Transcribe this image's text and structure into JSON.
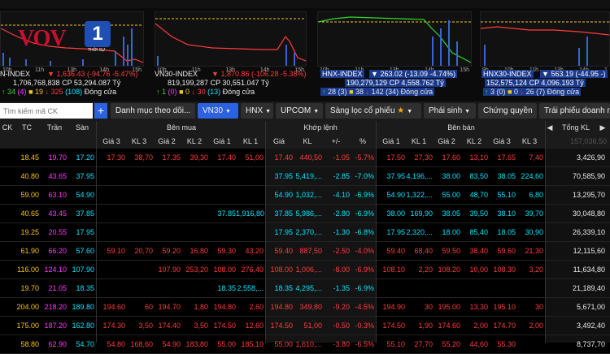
{
  "indices": [
    {
      "name": "N-INDEX",
      "value": "1,636.43",
      "change": "-94.76 -5.47%",
      "volume": "1,706,768,838",
      "cp": "CP 53,294.087 Tỷ",
      "up": "34",
      "up_c": "(4)",
      "ref": "19",
      "down": "325",
      "down_c": "(108)",
      "status": "Đóng cửa",
      "ticks": [
        "10h",
        "11h",
        "13h",
        "14h",
        "15h"
      ]
    },
    {
      "name": "VN30-INDEX",
      "value": "1,870.86",
      "change": "-106.28 -5.38%",
      "volume": "819,199,287",
      "cp": "CP 30,551.047 Tỷ",
      "up": "1",
      "up_c": "(0)",
      "ref": "0",
      "down": "30",
      "down_c": "(13)",
      "status": "Đóng cửa",
      "ticks": [
        "10h",
        "11h",
        "13h",
        "14h",
        "15h"
      ]
    },
    {
      "name": "HNX-INDEX",
      "value": "263.02",
      "change": "-13.09 -4.74%",
      "volume": "190,279,129",
      "cp": "CP 4,558.762 Tỷ",
      "up": "28",
      "up_c": "(3)",
      "ref": "38",
      "down": "142",
      "down_c": "(34)",
      "status": "Đóng cửa",
      "ticks": [
        "10h",
        "11h",
        "13h",
        "14h",
        "15h"
      ]
    },
    {
      "name": "HNX30-INDEX",
      "value": "563.19",
      "change": "-44.95 -",
      "volume": "152,575,124",
      "cp": "CP 4,096.193 Tỷ",
      "up": "3",
      "up_c": "(0)",
      "ref": "0",
      "down": "26",
      "down_c": "(7)",
      "status": "Đóng cửa",
      "ticks": [
        "9h",
        "10h",
        "11h",
        "13h",
        "14h",
        "1"
      ]
    }
  ],
  "logo": {
    "text": "VOV",
    "channel": "1",
    "sub": "THỜI SỰ"
  },
  "toolbar": {
    "search_placeholder": "Tìm kiếm mã CK",
    "plus": "+",
    "buttons": [
      "Danh mục theo dõi...",
      "VN30",
      "HNX",
      "UPCOM",
      "Sàng lọc cổ phiếu",
      "Phái sinh",
      "Chứng quyền",
      "Trái phiếu doanh n"
    ]
  },
  "headers": {
    "top": {
      "ck": "CK",
      "tc": "TC",
      "tran": "Trần",
      "san": "Sàn",
      "ben_mua": "Bên mua",
      "khop_lenh": "Khớp lệnh",
      "ben_ban": "Bên bán",
      "tong_kl": "Tổng KL"
    },
    "sub": [
      "Giá 3",
      "KL 3",
      "Giá 2",
      "KL 2",
      "Giá 1",
      "KL 1",
      "Giá",
      "KL",
      "+/-",
      "%",
      "Giá 1",
      "KL 1",
      "Giá 2",
      "KL 2",
      "Giá 3",
      "KL 3"
    ],
    "tong_kl_faded": "157,036,50"
  },
  "rows": [
    {
      "ck": "",
      "tc": "18.45",
      "tran": "19.70",
      "san": "17.20",
      "b3": "17.30",
      "k3": "38,70",
      "b2": "17.35",
      "k2": "39,30",
      "b1": "17.40",
      "k1": "51,00",
      "gia": "17.40",
      "kl": "440,50",
      "ch": "-1.05",
      "pct": "-5.7%",
      "s1": "17.50",
      "sk1": "27,30",
      "s2": "17.60",
      "sk2": "13,10",
      "s3": "17.65",
      "sk3": "7,40",
      "tong": "3,426,90",
      "color": "r"
    },
    {
      "ck": "",
      "tc": "40.80",
      "tran": "43.65",
      "san": "37.95",
      "b3": "",
      "k3": "",
      "b2": "",
      "k2": "",
      "b1": "",
      "k1": "",
      "gia": "37.95",
      "kl": "5,419,...",
      "ch": "-2.85",
      "pct": "-7.0%",
      "s1": "37.95",
      "sk1": "4,196,...",
      "s2": "38.00",
      "sk2": "83,50",
      "s3": "38.05",
      "sk3": "224,60",
      "tong": "70,585,90",
      "color": "c"
    },
    {
      "ck": "",
      "tc": "59.00",
      "tran": "63.10",
      "san": "54.90",
      "b3": "",
      "k3": "",
      "b2": "",
      "k2": "",
      "b1": "",
      "k1": "",
      "gia": "54.90",
      "kl": "1,032,...",
      "ch": "-4.10",
      "pct": "-6.9%",
      "s1": "54.90",
      "sk1": "1,322,...",
      "s2": "55.00",
      "sk2": "48,70",
      "s3": "55.10",
      "sk3": "6,80",
      "tong": "13,295,70",
      "color": "c"
    },
    {
      "ck": "",
      "tc": "40.65",
      "tran": "43.45",
      "san": "37.85",
      "b3": "",
      "k3": "",
      "b2": "",
      "k2": "",
      "b1": "37.85",
      "k1": "1,916,80",
      "gia": "37.85",
      "kl": "5,986,...",
      "ch": "-2.80",
      "pct": "-6.9%",
      "s1": "38.00",
      "sk1": "169,90",
      "s2": "38.05",
      "sk2": "39,50",
      "s3": "38.10",
      "sk3": "39,70",
      "tong": "30,048,80",
      "color": "c"
    },
    {
      "ck": "",
      "tc": "19.25",
      "tran": "20.55",
      "san": "17.95",
      "b3": "",
      "k3": "",
      "b2": "",
      "k2": "",
      "b1": "",
      "k1": "",
      "gia": "17.95",
      "kl": "2,370,...",
      "ch": "-1.30",
      "pct": "-6.8%",
      "s1": "17.95",
      "sk1": "2,320,...",
      "s2": "18.00",
      "sk2": "85,40",
      "s3": "18.05",
      "sk3": "30,90",
      "tong": "26,339,10",
      "color": "c"
    },
    {
      "ck": "",
      "tc": "61.90",
      "tan": "",
      "tran": "66.20",
      "san": "57.60",
      "b3": "59.10",
      "k3": "20,70",
      "b2": "59.20",
      "k2": "16,80",
      "b1": "59.30",
      "k1": "43,20",
      "gia": "59.40",
      "kl": "887,50",
      "ch": "-2.50",
      "pct": "-4.0%",
      "s1": "59.40",
      "sk1": "68,40",
      "s2": "59.50",
      "sk2": "38,40",
      "s3": "59.60",
      "sk3": "21,30",
      "tong": "12,115,60",
      "color": "r"
    },
    {
      "ck": "",
      "tc": "116.00",
      "tran": "124.10",
      "san": "107.90",
      "b3": "",
      "k3": "",
      "b2": "107.90",
      "k2": "253,20",
      "b1": "108.00",
      "k1": "276,40",
      "gia": "108.00",
      "kl": "1,006,...",
      "ch": "-8.00",
      "pct": "-6.9%",
      "s1": "108.10",
      "sk1": "2,20",
      "s2": "108.20",
      "sk2": "10,00",
      "s3": "108.30",
      "sk3": "3,20",
      "tong": "11,634,80",
      "color": "r"
    },
    {
      "ck": "",
      "tc": "19.70",
      "tran": "21.05",
      "san": "18.35",
      "b3": "",
      "k3": "",
      "b2": "",
      "k2": "",
      "b1": "18.35",
      "k1": "2,558,...",
      "gia": "18.35",
      "kl": "4,295,...",
      "ch": "-1.35",
      "pct": "-6.9%",
      "s1": "",
      "sk1": "",
      "s2": "",
      "sk2": "",
      "s3": "",
      "sk3": "",
      "tong": "21,189,40",
      "color": "c"
    },
    {
      "ck": "",
      "tc": "204.00",
      "tran": "218.20",
      "san": "189.80",
      "b3": "194.60",
      "k3": "60",
      "b2": "194.70",
      "k2": "1,80",
      "b1": "194.80",
      "k1": "2,60",
      "gia": "194.80",
      "kl": "349,80",
      "ch": "-9.20",
      "pct": "-4.5%",
      "s1": "194.90",
      "sk1": "30",
      "s2": "195.00",
      "sk2": "13,30",
      "s3": "195.10",
      "sk3": "30",
      "tong": "5,671,00",
      "color": "r"
    },
    {
      "ck": "",
      "tc": "175.00",
      "tran": "187.20",
      "san": "162.80",
      "b3": "174.30",
      "k3": "3,50",
      "b2": "174.40",
      "k2": "3,50",
      "b1": "174.50",
      "k1": "12,60",
      "gia": "174.50",
      "kl": "51,00",
      "ch": "-0.50",
      "pct": "-0.3%",
      "s1": "174.50",
      "sk1": "1,90",
      "s2": "174.60",
      "sk2": "2,00",
      "s3": "174.70",
      "sk3": "2,00",
      "tong": "3,492,40",
      "color": "r"
    },
    {
      "ck": "",
      "tc": "58.80",
      "tran": "62.90",
      "san": "54.70",
      "b3": "54.80",
      "k3": "168,60",
      "b2": "54.90",
      "k2": "183,80",
      "b1": "55.00",
      "k1": "185,10",
      "gia": "55.00",
      "kl": "1,610,...",
      "ch": "-3.80",
      "pct": "-6.5%",
      "s1": "55.10",
      "sk1": "27,70",
      "s2": "55.20",
      "sk2": "44,60",
      "s3": "55.30",
      "sk3": "",
      "tong": "8,737,70",
      "color": "r"
    }
  ],
  "row_ck_left": [
    "",
    "",
    "",
    "",
    "",
    "",
    "116.00",
    "",
    "",
    "",
    ""
  ],
  "colors": {
    "up": "#31d831",
    "ref": "#f5c518",
    "down": "#ff3b3b",
    "ceil": "#ff38ff",
    "floor": "#00e5ff",
    "accent": "#2b62e0"
  }
}
